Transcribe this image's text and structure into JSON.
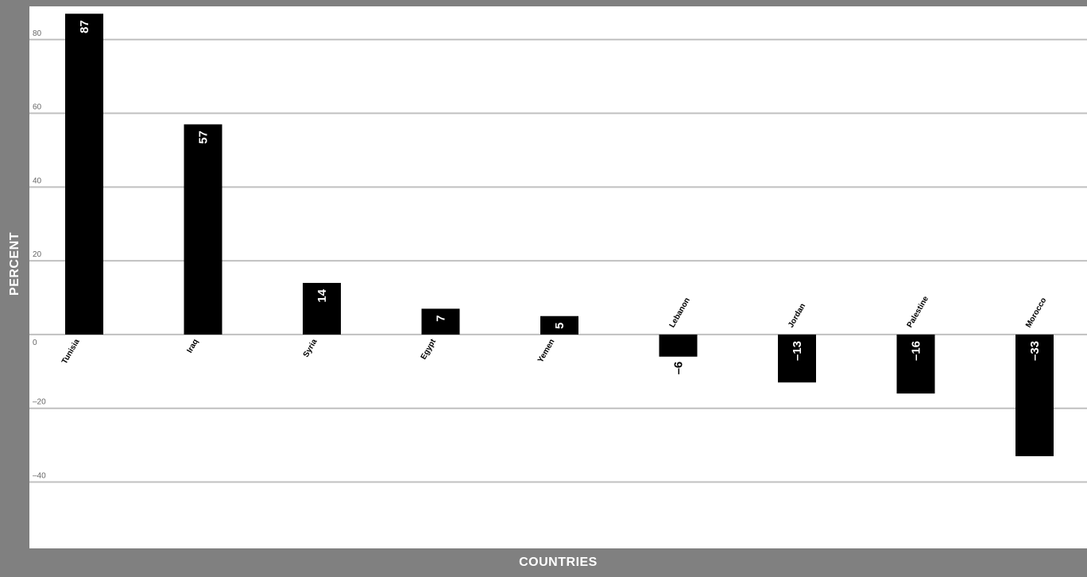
{
  "chart_data": {
    "type": "bar",
    "xlabel": "COUNTRIES",
    "ylabel": "PERCENT",
    "categories": [
      "Tunisia",
      "Iraq",
      "Syria",
      "Egypt",
      "Yemen",
      "Lebanon",
      "Jordan",
      "Palestine",
      "Morocco"
    ],
    "values": [
      87,
      57,
      14,
      7,
      5,
      -6,
      -13,
      -16,
      -33
    ],
    "value_labels": [
      "87",
      "57",
      "14",
      "7",
      "5",
      "–6",
      "–13",
      "–16",
      "–33"
    ],
    "yticks": [
      80,
      60,
      40,
      20,
      0,
      -20,
      -40
    ],
    "ytick_labels": [
      "80",
      "60",
      "40",
      "20",
      "0",
      "–20",
      "–40"
    ],
    "ylim": [
      -58,
      89
    ],
    "grid": true,
    "legend": "none",
    "colors": {
      "bar": "#000000",
      "frame": "#808080",
      "gridline": "#c0c0c0",
      "value_label_inside": "#ffffff",
      "value_label_outside": "#000000"
    }
  }
}
